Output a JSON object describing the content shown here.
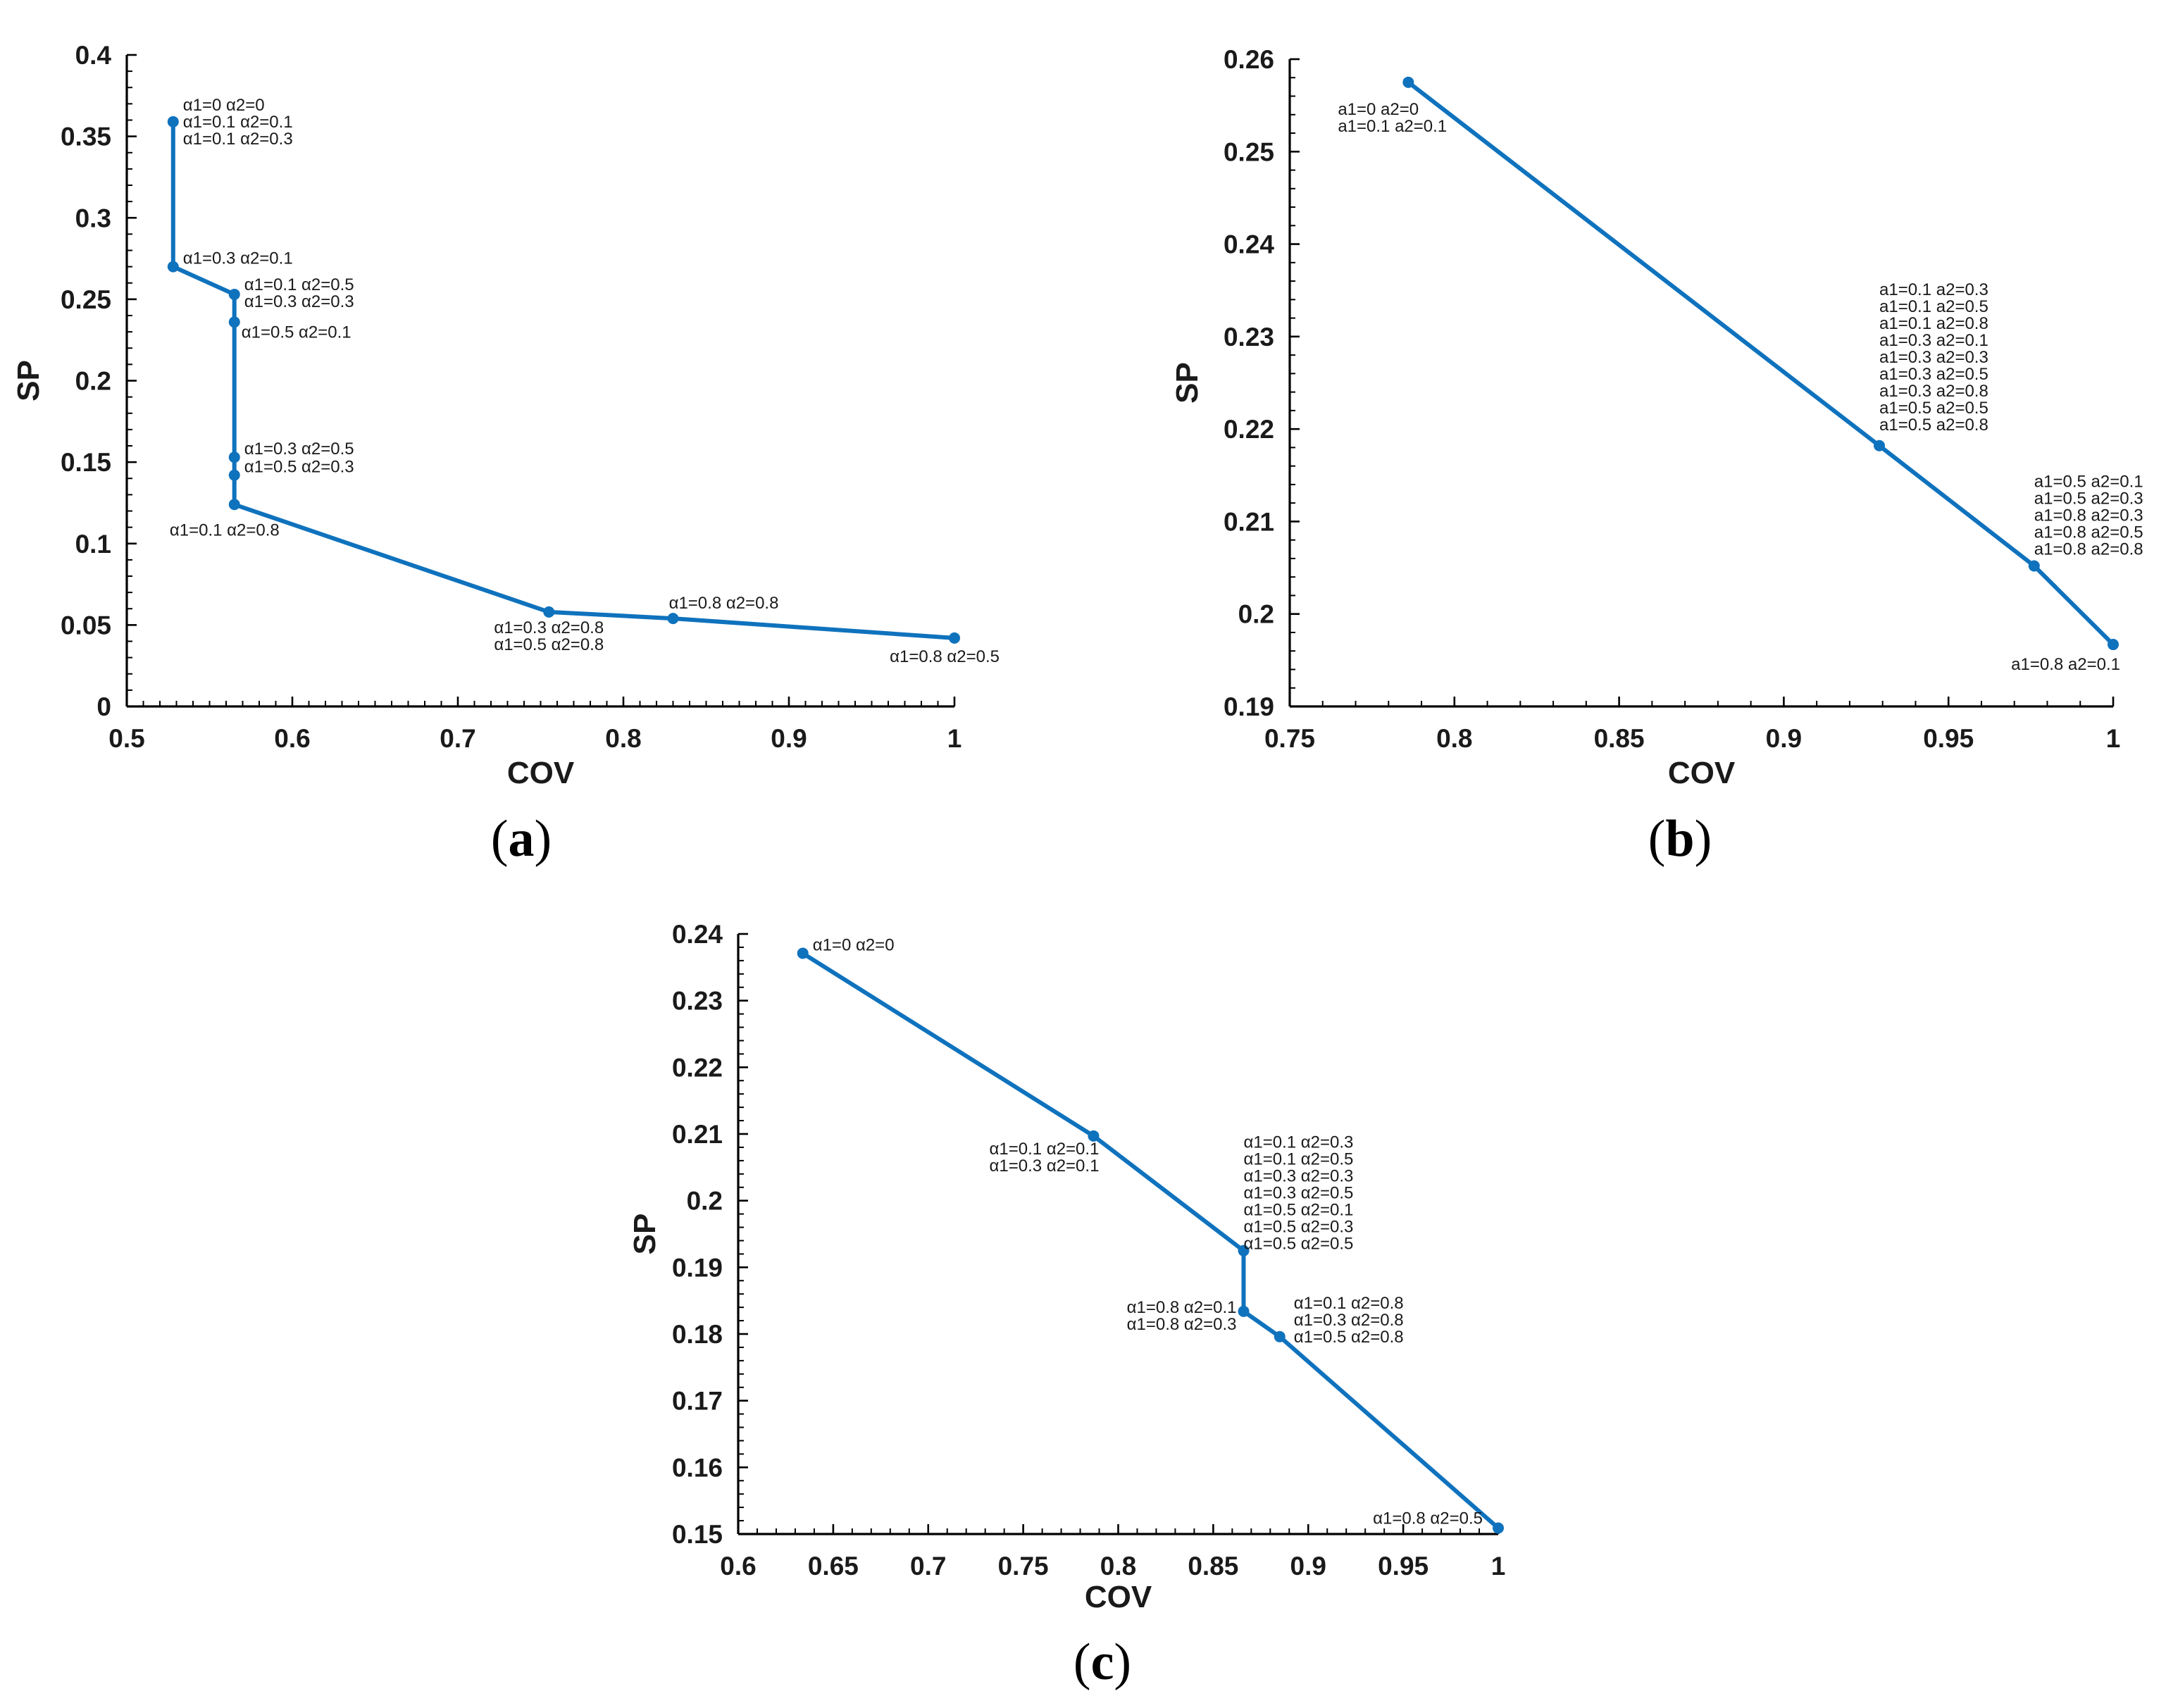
{
  "chart_data": [
    {
      "id": "a",
      "type": "line",
      "panel_label": "a",
      "xlabel": "COV",
      "ylabel": "SP",
      "xlim": [
        0.5,
        1.0
      ],
      "ylim": [
        0,
        0.4
      ],
      "xticks": [
        "0.5",
        "0.6",
        "0.7",
        "0.8",
        "0.9",
        "1"
      ],
      "yticks": [
        "0",
        "0.05",
        "0.1",
        "0.15",
        "0.2",
        "0.25",
        "0.3",
        "0.35",
        "0.4"
      ],
      "x": [
        0.528,
        0.528,
        0.565,
        0.565,
        0.565,
        0.565,
        0.565,
        0.755,
        0.83,
        1.0
      ],
      "y": [
        0.359,
        0.27,
        0.253,
        0.236,
        0.153,
        0.142,
        0.124,
        0.058,
        0.054,
        0.042
      ],
      "annotations": [
        {
          "lines": [
            "α1=0 α2=0",
            "α1=0.1 α2=0.1",
            "α1=0.1 α2=0.3"
          ],
          "point": 0,
          "pos": "right"
        },
        {
          "lines": [
            "α1=0.3 α2=0.1"
          ],
          "point": 1,
          "pos": "right"
        },
        {
          "lines": [
            "α1=0.1 α2=0.5",
            "α1=0.3 α2=0.3"
          ],
          "point": 2,
          "pos": "right"
        },
        {
          "lines": [
            "α1=0.5 α2=0.1"
          ],
          "point": 3,
          "pos": "right-below"
        },
        {
          "lines": [
            "α1=0.3 α2=0.5"
          ],
          "point": 4,
          "pos": "right"
        },
        {
          "lines": [
            "α1=0.5 α2=0.3"
          ],
          "point": 5,
          "pos": "right"
        },
        {
          "lines": [
            "α1=0.1 α2=0.8"
          ],
          "point": 6,
          "pos": "below-left"
        },
        {
          "lines": [
            "α1=0.3 α2=0.8",
            "α1=0.5 α2=0.8"
          ],
          "point": 7,
          "pos": "below"
        },
        {
          "lines": [
            "α1=0.8 α2=0.8"
          ],
          "point": 8,
          "pos": "above"
        },
        {
          "lines": [
            "α1=0.8 α2=0.5"
          ],
          "point": 9,
          "pos": "below-left"
        }
      ]
    },
    {
      "id": "b",
      "type": "line",
      "panel_label": "b",
      "xlabel": "COV",
      "ylabel": "SP",
      "xlim": [
        0.75,
        1.0
      ],
      "ylim": [
        0.19,
        0.26
      ],
      "xticks": [
        "0.75",
        "0.8",
        "0.85",
        "0.9",
        "0.95",
        "1"
      ],
      "yticks": [
        "0.19",
        "0.2",
        "0.21",
        "0.22",
        "0.23",
        "0.24",
        "0.25",
        "0.26"
      ],
      "x": [
        0.786,
        0.929,
        0.976,
        1.0
      ],
      "y": [
        0.2575,
        0.2182,
        0.2052,
        0.1967
      ],
      "annotations": [
        {
          "lines": [
            "a1=0 a2=0",
            "a1=0.1 a2=0.1"
          ],
          "point": 0,
          "pos": "below"
        },
        {
          "lines": [
            "a1=0.1 a2=0.3",
            "a1=0.1 a2=0.5",
            "a1=0.1 a2=0.8",
            "a1=0.3 a2=0.1",
            "a1=0.3 a2=0.3",
            "a1=0.3 a2=0.5",
            "a1=0.3 a2=0.8",
            "a1=0.5 a2=0.5",
            "a1=0.5 a2=0.8"
          ],
          "point": 1,
          "pos": "above"
        },
        {
          "lines": [
            "a1=0.5 a2=0.1",
            "a1=0.5 a2=0.3",
            "a1=0.8 a2=0.3",
            "a1=0.8 a2=0.5",
            "a1=0.8 a2=0.8"
          ],
          "point": 2,
          "pos": "above-right"
        },
        {
          "lines": [
            "a1=0.8 a2=0.1"
          ],
          "point": 3,
          "pos": "below-left"
        }
      ]
    },
    {
      "id": "c",
      "type": "line",
      "panel_label": "c",
      "xlabel": "COV",
      "ylabel": "SP",
      "xlim": [
        0.6,
        1.0
      ],
      "ylim": [
        0.15,
        0.24
      ],
      "xticks": [
        "0.6",
        "0.65",
        "0.7",
        "0.75",
        "0.8",
        "0.85",
        "0.9",
        "0.95",
        "1"
      ],
      "yticks": [
        "0.15",
        "0.16",
        "0.17",
        "0.18",
        "0.19",
        "0.2",
        "0.21",
        "0.22",
        "0.23",
        "0.24"
      ],
      "x": [
        0.634,
        0.787,
        0.866,
        0.866,
        0.885,
        1.0
      ],
      "y": [
        0.2371,
        0.2097,
        0.1925,
        0.1834,
        0.1796,
        0.1509
      ],
      "annotations": [
        {
          "lines": [
            "α1=0 α2=0"
          ],
          "point": 0,
          "pos": "right"
        },
        {
          "lines": [
            "α1=0.1 α2=0.1",
            "α1=0.3 α2=0.1"
          ],
          "point": 1,
          "pos": "below-left"
        },
        {
          "lines": [
            "α1=0.1 α2=0.3",
            "α1=0.1 α2=0.5",
            "α1=0.3 α2=0.3",
            "α1=0.3 α2=0.5",
            "α1=0.5 α2=0.1",
            "α1=0.5 α2=0.3",
            "α1=0.5 α2=0.5"
          ],
          "point": 2,
          "pos": "above-right"
        },
        {
          "lines": [
            "α1=0.8 α2=0.1",
            "α1=0.8 α2=0.3"
          ],
          "point": 3,
          "pos": "left"
        },
        {
          "lines": [
            "α1=0.1 α2=0.8",
            "α1=0.3 α2=0.8",
            "α1=0.5 α2=0.8"
          ],
          "point": 4,
          "pos": "right"
        },
        {
          "lines": [
            "α1=0.8 α2=0.5"
          ],
          "point": 5,
          "pos": "left"
        }
      ]
    }
  ]
}
